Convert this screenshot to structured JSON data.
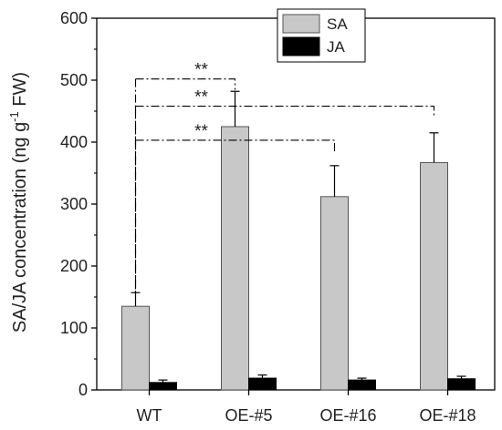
{
  "chart_data": {
    "type": "bar",
    "ylabel_main": "SA/JA concentration (ng g",
    "ylabel_sup": "-1",
    "ylabel_tail": " FW)",
    "xlabel": "",
    "ylim": [
      0,
      600
    ],
    "yticks": [
      0,
      100,
      200,
      300,
      400,
      500,
      600
    ],
    "ytick_labels": [
      "0",
      "100",
      "200",
      "300",
      "400",
      "500",
      "600"
    ],
    "categories": [
      "WT",
      "OE-#5",
      "OE-#16",
      "OE-#18"
    ],
    "series": [
      {
        "name": "SA",
        "values": [
          135,
          425,
          312,
          367
        ],
        "errors": [
          22,
          57,
          50,
          48
        ],
        "color": "#c8c8c8"
      },
      {
        "name": "JA",
        "values": [
          12,
          19,
          16,
          18
        ],
        "errors": [
          4,
          5,
          3,
          4
        ],
        "color": "#000000"
      }
    ],
    "legend": "top-center",
    "significance": [
      {
        "from": "WT",
        "to": "OE-#5",
        "label": "**",
        "y": 502
      },
      {
        "from": "WT",
        "to": "OE-#18",
        "label": "**",
        "y": 458
      },
      {
        "from": "WT",
        "to": "OE-#16",
        "label": "**",
        "y": 403
      }
    ]
  }
}
